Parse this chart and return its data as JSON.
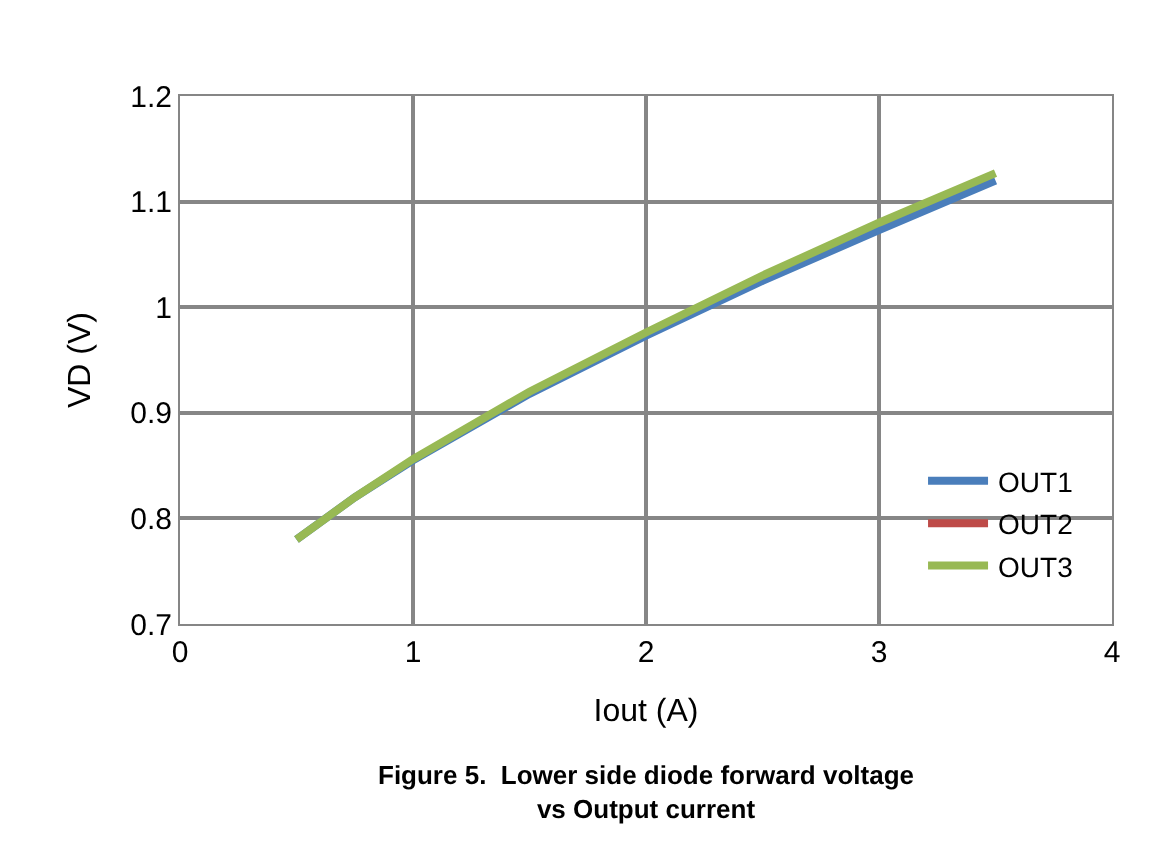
{
  "chart_data": {
    "type": "line",
    "title": "Figure 5.  Lower side diode forward voltage\nvs Output current",
    "xlabel": "Iout (A)",
    "ylabel": "VD (V)",
    "x": [
      0.5,
      0.75,
      1,
      1.5,
      2,
      2.5,
      3,
      3.5
    ],
    "series": [
      {
        "name": "OUT1",
        "color": "#4a7ebb",
        "values": [
          0.78,
          0.82,
          0.855,
          0.918,
          0.973,
          1.025,
          1.073,
          1.12
        ]
      },
      {
        "name": "OUT2",
        "color": "#be4b48",
        "values": [
          null,
          null,
          null,
          null,
          null,
          null,
          null,
          null
        ]
      },
      {
        "name": "OUT3",
        "color": "#98b954",
        "values": [
          0.78,
          0.82,
          0.856,
          0.92,
          0.976,
          1.03,
          1.08,
          1.127
        ]
      }
    ],
    "xlim": [
      0,
      4
    ],
    "xticks": [
      0,
      1,
      2,
      3,
      4
    ],
    "ylim": [
      0.7,
      1.2
    ],
    "yticks": [
      0.7,
      0.8,
      0.9,
      1,
      1.1,
      1.2
    ],
    "grid": true,
    "legend": "bottom right",
    "marker": "none",
    "line_style": "solid"
  }
}
